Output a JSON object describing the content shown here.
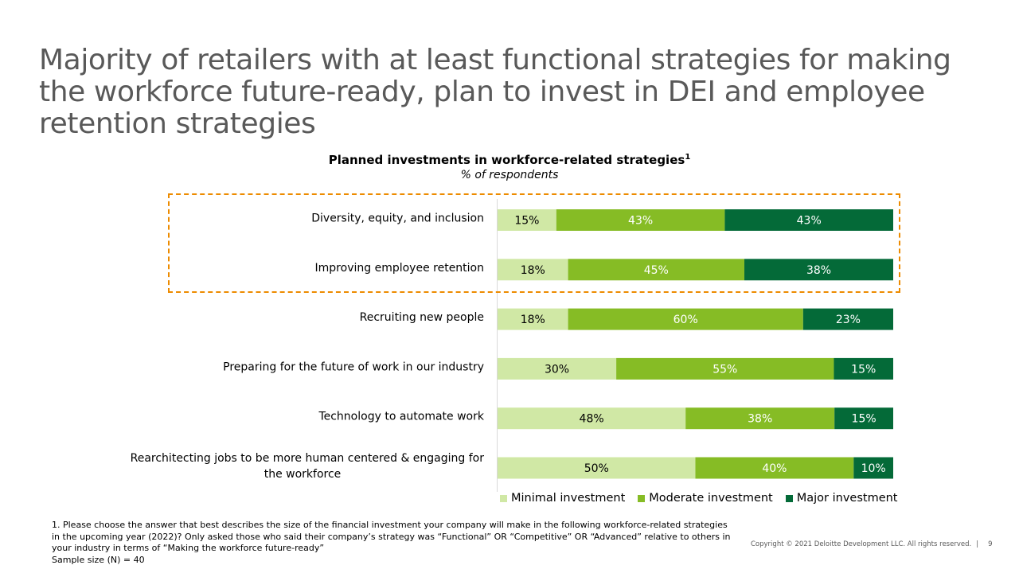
{
  "title": "Majority of retailers with at least functional strategies for making the workforce future-ready, plan to invest in DEI and employee retention strategies",
  "chart_data": {
    "type": "bar",
    "orientation": "horizontal",
    "stacked": true,
    "title": "Planned investments in workforce-related strategies",
    "title_superscript": "1",
    "subtitle": "% of respondents",
    "categories": [
      "Diversity, equity, and inclusion",
      "Improving employee retention",
      "Recruiting new people",
      "Preparing for the future of work in our industry",
      "Technology to automate work",
      "Rearchitecting jobs to be more human centered & engaging for the workforce"
    ],
    "series": [
      {
        "name": "Minimal investment",
        "color": "#D0E8A5",
        "label_color": "#000000",
        "values": [
          15,
          18,
          18,
          30,
          48,
          50
        ]
      },
      {
        "name": "Moderate investment",
        "color": "#86BC25",
        "label_color": "#FFFFFF",
        "values": [
          43,
          45,
          60,
          55,
          38,
          40
        ]
      },
      {
        "name": "Major investment",
        "color": "#046A38",
        "label_color": "#FFFFFF",
        "values": [
          43,
          38,
          23,
          15,
          15,
          10
        ]
      }
    ],
    "value_suffix": "%",
    "highlighted_categories": [
      0,
      1
    ],
    "highlight_color": "#ED8B00",
    "legend_position": "bottom"
  },
  "footnote": {
    "lines": [
      "1. Please choose the answer that best describes the size of the financial investment your company will make in the following workforce-related strategies",
      "in the upcoming year (2022)? Only asked those who said their company’s strategy was “Functional” OR “Competitive” OR “Advanced” relative to others in",
      "your industry in terms of “Making the workforce future-ready”",
      "Sample size (N) = 40"
    ]
  },
  "copyright": "Copyright © 2021 Deloitte Development LLC. All rights reserved.",
  "separator": "|",
  "page_number": "9"
}
